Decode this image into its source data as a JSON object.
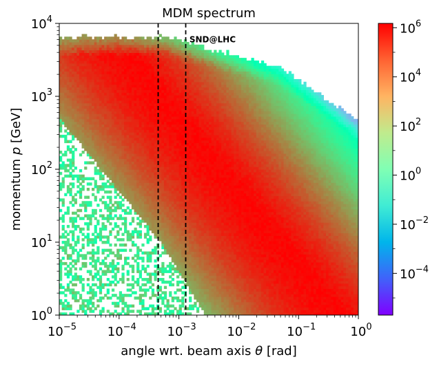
{
  "chart_data": {
    "type": "heatmap",
    "title": "MDM spectrum",
    "xlabel": {
      "prefix": "angle wrt. beam axis ",
      "symbol": "θ",
      "suffix": " [rad]"
    },
    "ylabel": {
      "prefix": "momentum ",
      "symbol": "p",
      "suffix": " [GeV]"
    },
    "x_scale": "log",
    "y_scale": "log",
    "xlim": [
      1e-05,
      1
    ],
    "ylim": [
      1,
      10000
    ],
    "x_ticks": [
      {
        "value": 1e-05,
        "base": "10",
        "exp": "−5"
      },
      {
        "value": 0.0001,
        "base": "10",
        "exp": "−4"
      },
      {
        "value": 0.001,
        "base": "10",
        "exp": "−3"
      },
      {
        "value": 0.01,
        "base": "10",
        "exp": "−2"
      },
      {
        "value": 0.1,
        "base": "10",
        "exp": "−1"
      },
      {
        "value": 1,
        "base": "10",
        "exp": "0"
      }
    ],
    "y_ticks": [
      {
        "value": 1,
        "base": "10",
        "exp": "0"
      },
      {
        "value": 10,
        "base": "10",
        "exp": "1"
      },
      {
        "value": 100,
        "base": "10",
        "exp": "2"
      },
      {
        "value": 1000,
        "base": "10",
        "exp": "3"
      },
      {
        "value": 10000,
        "base": "10",
        "exp": "4"
      }
    ],
    "colorbar": {
      "colormap": "rainbow",
      "scale": "log",
      "range": [
        2e-06,
        1500000
      ],
      "ticks": [
        {
          "value": 0.0001,
          "base": "10",
          "exp": "−4"
        },
        {
          "value": 0.01,
          "base": "10",
          "exp": "−2"
        },
        {
          "value": 1,
          "base": "10",
          "exp": "0"
        },
        {
          "value": 100,
          "base": "10",
          "exp": "2"
        },
        {
          "value": 10000,
          "base": "10",
          "exp": "4"
        },
        {
          "value": 1000000,
          "base": "10",
          "exp": "6"
        }
      ]
    },
    "vertical_lines": [
      {
        "x": 0.00045,
        "style": "dashed"
      },
      {
        "x": 0.0013,
        "style": "dashed"
      }
    ],
    "annotation": {
      "text": "SND@LHC",
      "x": 0.0015,
      "y": 5500
    },
    "distribution": {
      "description": "2D histogram of MDM counts; high density band roughly along p ~ 0.6/theta, upper edge near p ~ 6500 GeV",
      "p_max_gev": 6500,
      "ridge_product_theta_p": 0.6
    }
  }
}
